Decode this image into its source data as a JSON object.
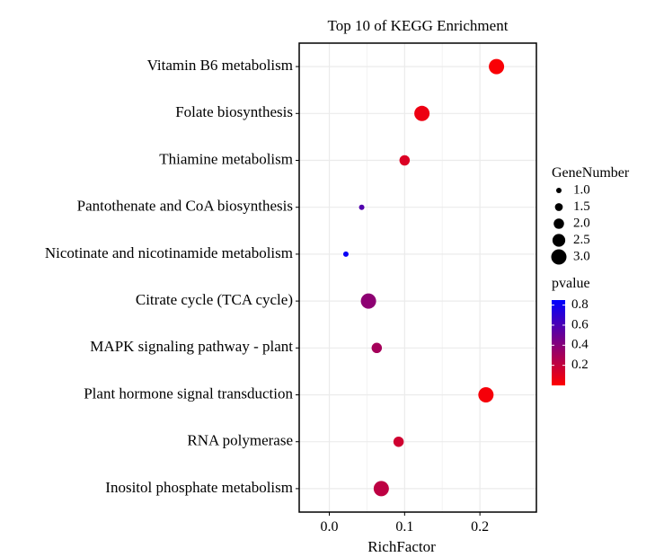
{
  "chart_data": {
    "type": "scatter",
    "title": "Top 10 of KEGG Enrichment",
    "xlabel": "RichFactor",
    "ylabel": "",
    "xlim": [
      -0.04,
      0.275
    ],
    "xticks": [
      0.0,
      0.1,
      0.2
    ],
    "xtick_labels": [
      "0.0",
      "0.1",
      "0.2"
    ],
    "grid": true,
    "points": [
      {
        "term": "Vitamin B6 metabolism",
        "rich_factor": 0.222,
        "gene_number": 3,
        "pvalue": 0.02
      },
      {
        "term": "Folate biosynthesis",
        "rich_factor": 0.123,
        "gene_number": 3,
        "pvalue": 0.06
      },
      {
        "term": "Thiamine metabolism",
        "rich_factor": 0.1,
        "gene_number": 2,
        "pvalue": 0.12
      },
      {
        "term": "Pantothenate and CoA biosynthesis",
        "rich_factor": 0.043,
        "gene_number": 1,
        "pvalue": 0.58
      },
      {
        "term": "Nicotinate and nicotinamide metabolism",
        "rich_factor": 0.022,
        "gene_number": 1,
        "pvalue": 0.82
      },
      {
        "term": "Citrate cycle (TCA cycle)",
        "rich_factor": 0.052,
        "gene_number": 3,
        "pvalue": 0.38
      },
      {
        "term": "MAPK signaling pathway - plant",
        "rich_factor": 0.063,
        "gene_number": 2,
        "pvalue": 0.3
      },
      {
        "term": "Plant hormone signal transduction",
        "rich_factor": 0.208,
        "gene_number": 3,
        "pvalue": 0.03
      },
      {
        "term": "RNA polymerase",
        "rich_factor": 0.092,
        "gene_number": 2,
        "pvalue": 0.16
      },
      {
        "term": "Inositol phosphate metabolism",
        "rich_factor": 0.069,
        "gene_number": 3,
        "pvalue": 0.22
      }
    ],
    "size_legend": {
      "title": "GeneNumber",
      "values": [
        1.0,
        1.5,
        2.0,
        2.5,
        3.0
      ],
      "labels": [
        "1.0",
        "1.5",
        "2.0",
        "2.5",
        "3.0"
      ]
    },
    "color_legend": {
      "title": "pvalue",
      "low_color": "#ff0000",
      "high_color": "#0000ff",
      "range": [
        0.0,
        0.85
      ],
      "ticks": [
        0.2,
        0.4,
        0.6,
        0.8
      ],
      "tick_labels": [
        "0.2",
        "0.4",
        "0.6",
        "0.8"
      ]
    }
  }
}
